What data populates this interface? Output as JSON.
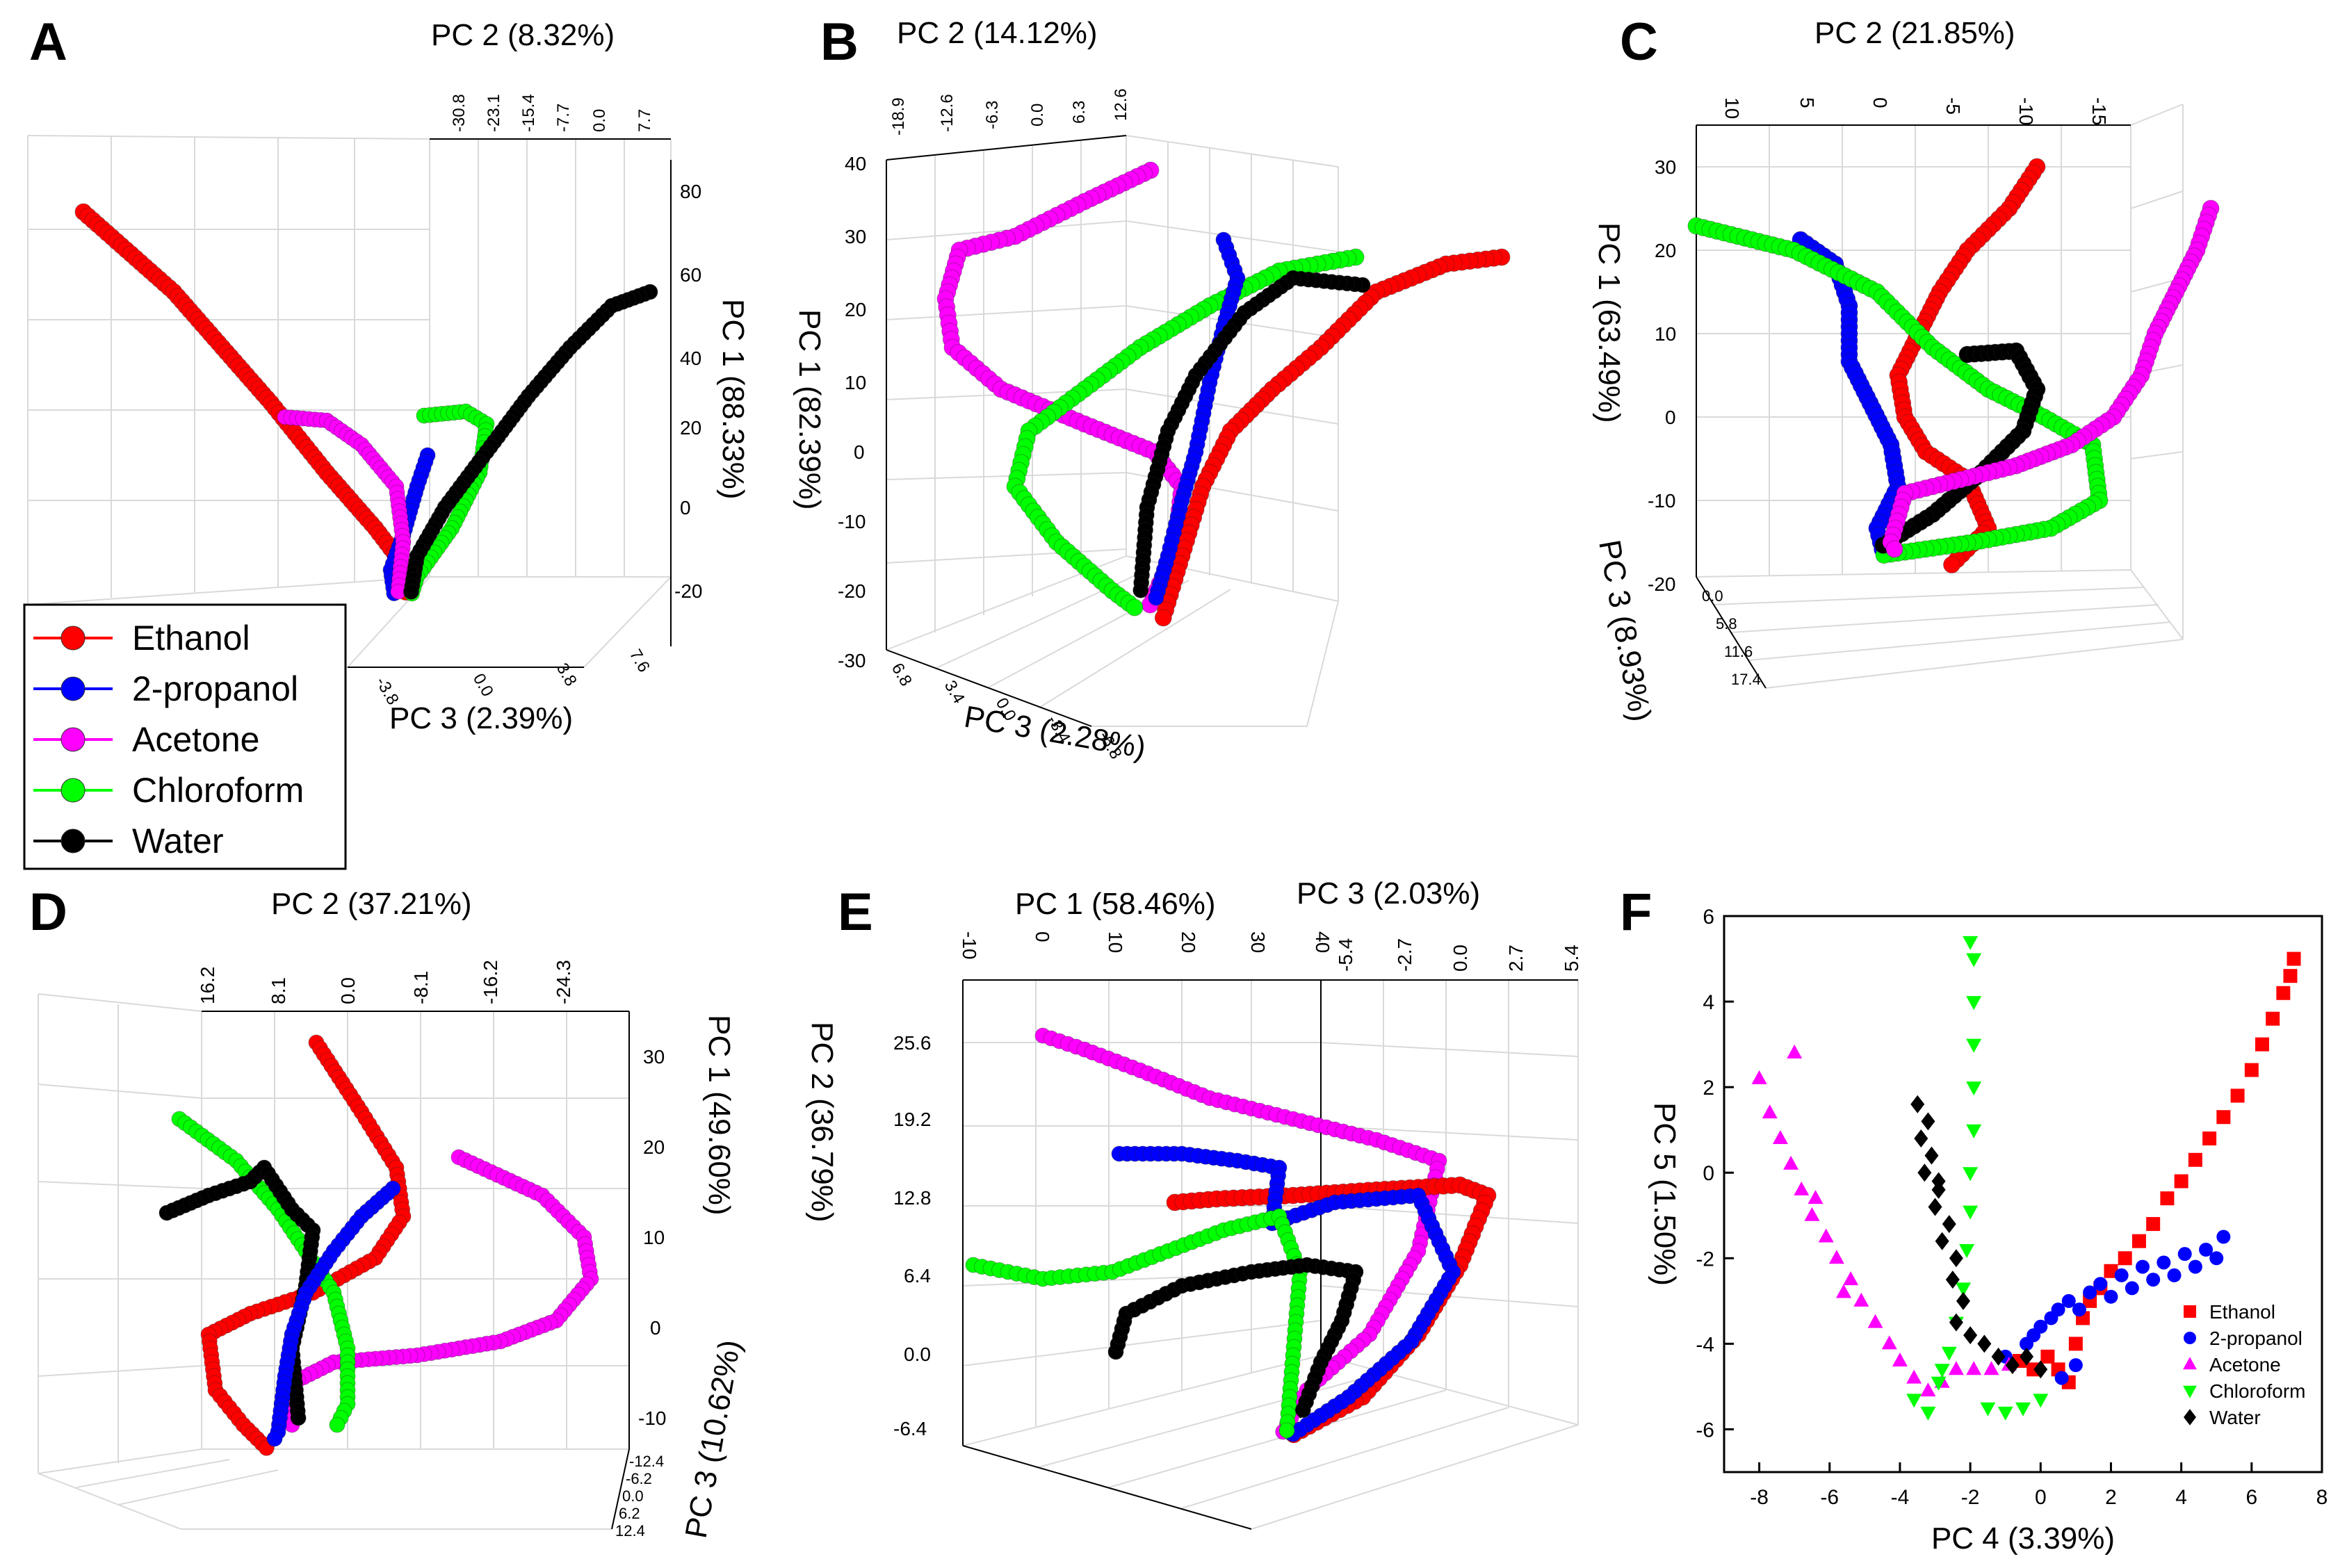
{
  "colors": {
    "ethanol": "#ff0000",
    "propanol": "#0000ff",
    "acetone": "#ff00ff",
    "chloroform": "#00ff00",
    "water": "#000000",
    "dark_red": "#cc0000",
    "dark_blue": "#0000cc",
    "dark_magenta": "#cc00cc",
    "dark_green": "#00cc00"
  },
  "legend": {
    "items": [
      {
        "key": "ethanol",
        "label": "Ethanol"
      },
      {
        "key": "propanol",
        "label": "2-propanol"
      },
      {
        "key": "acetone",
        "label": "Acetone"
      },
      {
        "key": "chloroform",
        "label": "Chloroform"
      },
      {
        "key": "water",
        "label": "Water"
      }
    ]
  },
  "chart_data": [
    {
      "panel": "A",
      "type": "scatter3d",
      "axis_labels": {
        "pc2": "PC 2 (8.32%)",
        "pc1": "PC 1 (88.33%)",
        "pc3": "PC 3 (2.39%)"
      },
      "pc2_ticks": [
        "-30.8",
        "-23.1",
        "-15.4",
        "-7.7",
        "0.0",
        "7.7"
      ],
      "pc1_ticks": [
        "80",
        "60",
        "40",
        "20",
        "0",
        "-20"
      ],
      "pc3_ticks": [
        "7.6",
        "3.8",
        "0.0",
        "-3.8"
      ],
      "series_names": [
        "Ethanol",
        "2-propanol",
        "Acetone",
        "Chloroform",
        "Water"
      ]
    },
    {
      "panel": "B",
      "type": "scatter3d",
      "axis_labels": {
        "pc2": "PC 2 (14.12%)",
        "pc1": "PC 1 (82.39%)",
        "pc3": "PC 3 (2.28%)"
      },
      "pc2_ticks": [
        "-18.9",
        "-12.6",
        "-6.3",
        "0.0",
        "6.3",
        "12.6"
      ],
      "pc1_ticks": [
        "40",
        "30",
        "20",
        "10",
        "0",
        "-10",
        "-20",
        "-30"
      ],
      "pc3_ticks": [
        "6.8",
        "3.4",
        "0.0",
        "-3.4",
        "-6.8"
      ],
      "series_names": [
        "Ethanol",
        "2-propanol",
        "Acetone",
        "Chloroform",
        "Water"
      ]
    },
    {
      "panel": "C",
      "type": "scatter3d",
      "axis_labels": {
        "pc2": "PC 2 (21.85%)",
        "pc1": "PC 1 (63.49%)",
        "pc3": "PC 3 (8.93%)"
      },
      "pc2_ticks": [
        "10",
        "5",
        "0",
        "-5",
        "-10",
        "-15"
      ],
      "pc1_ticks": [
        "30",
        "20",
        "10",
        "0",
        "-10",
        "-20"
      ],
      "pc3_ticks": [
        "0.0",
        "5.8",
        "11.6",
        "17.4"
      ],
      "series_names": [
        "Ethanol",
        "2-propanol",
        "Acetone",
        "Chloroform",
        "Water"
      ]
    },
    {
      "panel": "D",
      "type": "scatter3d",
      "axis_labels": {
        "pc2": "PC 2 (37.21%)",
        "pc1": "PC 1 (49.60%)",
        "pc3": "PC 3 (10.62%)"
      },
      "pc2_ticks": [
        "16.2",
        "8.1",
        "0.0",
        "-8.1",
        "-16.2",
        "-24.3"
      ],
      "pc1_ticks": [
        "30",
        "20",
        "10",
        "0",
        "-10"
      ],
      "pc3_ticks": [
        "-12.4",
        "-6.2",
        "0.0",
        "6.2",
        "12.4"
      ],
      "series_names": [
        "Ethanol",
        "2-propanol",
        "Acetone",
        "Chloroform",
        "Water"
      ]
    },
    {
      "panel": "E",
      "type": "scatter3d",
      "axis_labels": {
        "pc1": "PC 1 (58.46%)",
        "pc3": "PC 3 (2.03%)",
        "pc2": "PC 2 (36.79%)"
      },
      "pc1_ticks": [
        "-10",
        "0",
        "10",
        "20",
        "30",
        "40"
      ],
      "pc3_ticks": [
        "-5.4",
        "-2.7",
        "0.0",
        "2.7",
        "5.4"
      ],
      "pc2_ticks": [
        "25.6",
        "19.2",
        "12.8",
        "6.4",
        "0.0",
        "-6.4"
      ],
      "series_names": [
        "Ethanol",
        "2-propanol",
        "Acetone",
        "Chloroform",
        "Water"
      ]
    },
    {
      "panel": "F",
      "type": "scatter",
      "xlabel": "PC 4 (3.39%)",
      "ylabel": "PC 5 (1.50%)",
      "xlim": [
        -9,
        8
      ],
      "ylim": [
        -7,
        6
      ],
      "xticks": [
        -8,
        -6,
        -4,
        -2,
        0,
        2,
        4,
        6,
        8
      ],
      "yticks": [
        -6,
        -4,
        -2,
        0,
        2,
        4,
        6
      ],
      "series": [
        {
          "name": "Ethanol",
          "marker": "square",
          "color": "#ff0000",
          "points": [
            [
              -0.6,
              -4.4
            ],
            [
              -0.2,
              -4.6
            ],
            [
              0.2,
              -4.3
            ],
            [
              0.5,
              -4.6
            ],
            [
              0.8,
              -4.9
            ],
            [
              1.0,
              -4.0
            ],
            [
              1.2,
              -3.4
            ],
            [
              1.4,
              -3.0
            ],
            [
              1.7,
              -2.7
            ],
            [
              2.0,
              -2.3
            ],
            [
              2.4,
              -2.0
            ],
            [
              2.8,
              -1.6
            ],
            [
              3.2,
              -1.2
            ],
            [
              3.6,
              -0.6
            ],
            [
              4.0,
              -0.2
            ],
            [
              4.4,
              0.3
            ],
            [
              4.8,
              0.8
            ],
            [
              5.2,
              1.3
            ],
            [
              5.6,
              1.8
            ],
            [
              6.0,
              2.4
            ],
            [
              6.3,
              3.0
            ],
            [
              6.6,
              3.6
            ],
            [
              6.9,
              4.2
            ],
            [
              7.1,
              4.6
            ],
            [
              7.2,
              5.0
            ]
          ]
        },
        {
          "name": "2-propanol",
          "marker": "circle",
          "color": "#0000ff",
          "points": [
            [
              -0.4,
              -4.0
            ],
            [
              -0.2,
              -3.8
            ],
            [
              0.0,
              -3.6
            ],
            [
              0.3,
              -3.4
            ],
            [
              0.5,
              -3.2
            ],
            [
              0.8,
              -3.0
            ],
            [
              1.1,
              -3.2
            ],
            [
              1.4,
              -2.8
            ],
            [
              1.7,
              -2.6
            ],
            [
              2.0,
              -2.9
            ],
            [
              2.3,
              -2.4
            ],
            [
              2.6,
              -2.7
            ],
            [
              2.9,
              -2.2
            ],
            [
              3.2,
              -2.5
            ],
            [
              3.5,
              -2.1
            ],
            [
              3.8,
              -2.4
            ],
            [
              4.1,
              -1.9
            ],
            [
              4.4,
              -2.2
            ],
            [
              4.7,
              -1.8
            ],
            [
              5.0,
              -2.0
            ],
            [
              5.2,
              -1.5
            ],
            [
              0.6,
              -4.8
            ],
            [
              1.0,
              -4.5
            ],
            [
              -1.0,
              -4.3
            ]
          ]
        },
        {
          "name": "Acetone",
          "marker": "triangle-up",
          "color": "#ff00ff",
          "points": [
            [
              -8.0,
              2.2
            ],
            [
              -7.7,
              1.4
            ],
            [
              -7.4,
              0.8
            ],
            [
              -7.1,
              0.2
            ],
            [
              -6.8,
              -0.4
            ],
            [
              -6.5,
              -1.0
            ],
            [
              -6.1,
              -1.5
            ],
            [
              -5.8,
              -2.0
            ],
            [
              -5.4,
              -2.5
            ],
            [
              -5.1,
              -3.0
            ],
            [
              -4.7,
              -3.5
            ],
            [
              -4.3,
              -4.0
            ],
            [
              -4.0,
              -4.4
            ],
            [
              -3.6,
              -4.8
            ],
            [
              -3.2,
              -5.1
            ],
            [
              -2.8,
              -4.9
            ],
            [
              -2.4,
              -4.6
            ],
            [
              -1.9,
              -4.6
            ],
            [
              -1.4,
              -4.6
            ],
            [
              -0.9,
              -4.5
            ],
            [
              -7.0,
              2.8
            ],
            [
              -6.4,
              -0.6
            ],
            [
              -5.6,
              -2.8
            ]
          ]
        },
        {
          "name": "Chloroform",
          "marker": "triangle-down",
          "color": "#00ff00",
          "points": [
            [
              -3.6,
              -5.3
            ],
            [
              -3.2,
              -5.6
            ],
            [
              -2.9,
              -4.9
            ],
            [
              -2.6,
              -4.2
            ],
            [
              -2.4,
              -3.5
            ],
            [
              -2.2,
              -2.7
            ],
            [
              -2.1,
              -1.8
            ],
            [
              -2.0,
              -0.9
            ],
            [
              -2.0,
              0.0
            ],
            [
              -1.9,
              1.0
            ],
            [
              -1.9,
              2.0
            ],
            [
              -1.9,
              3.0
            ],
            [
              -1.9,
              4.0
            ],
            [
              -1.9,
              5.0
            ],
            [
              -2.0,
              5.4
            ],
            [
              -1.5,
              -5.5
            ],
            [
              -1.0,
              -5.6
            ],
            [
              -0.5,
              -5.5
            ],
            [
              0.0,
              -5.3
            ],
            [
              -2.8,
              -4.6
            ]
          ]
        },
        {
          "name": "Water",
          "marker": "diamond",
          "color": "#000000",
          "points": [
            [
              -3.2,
              1.2
            ],
            [
              -3.4,
              0.8
            ],
            [
              -3.1,
              0.4
            ],
            [
              -3.3,
              0.0
            ],
            [
              -2.9,
              -0.4
            ],
            [
              -3.0,
              -0.8
            ],
            [
              -2.6,
              -1.2
            ],
            [
              -2.8,
              -1.6
            ],
            [
              -2.4,
              -2.0
            ],
            [
              -2.5,
              -2.5
            ],
            [
              -2.2,
              -3.0
            ],
            [
              -2.4,
              -3.5
            ],
            [
              -2.0,
              -3.8
            ],
            [
              -1.6,
              -4.0
            ],
            [
              -1.2,
              -4.3
            ],
            [
              -0.8,
              -4.5
            ],
            [
              -0.4,
              -4.3
            ],
            [
              0.0,
              -4.6
            ],
            [
              -3.5,
              1.6
            ],
            [
              -2.9,
              -0.2
            ]
          ]
        }
      ],
      "legend": [
        "Ethanol",
        "2-propanol",
        "Acetone",
        "Chloroform",
        "Water"
      ]
    }
  ]
}
